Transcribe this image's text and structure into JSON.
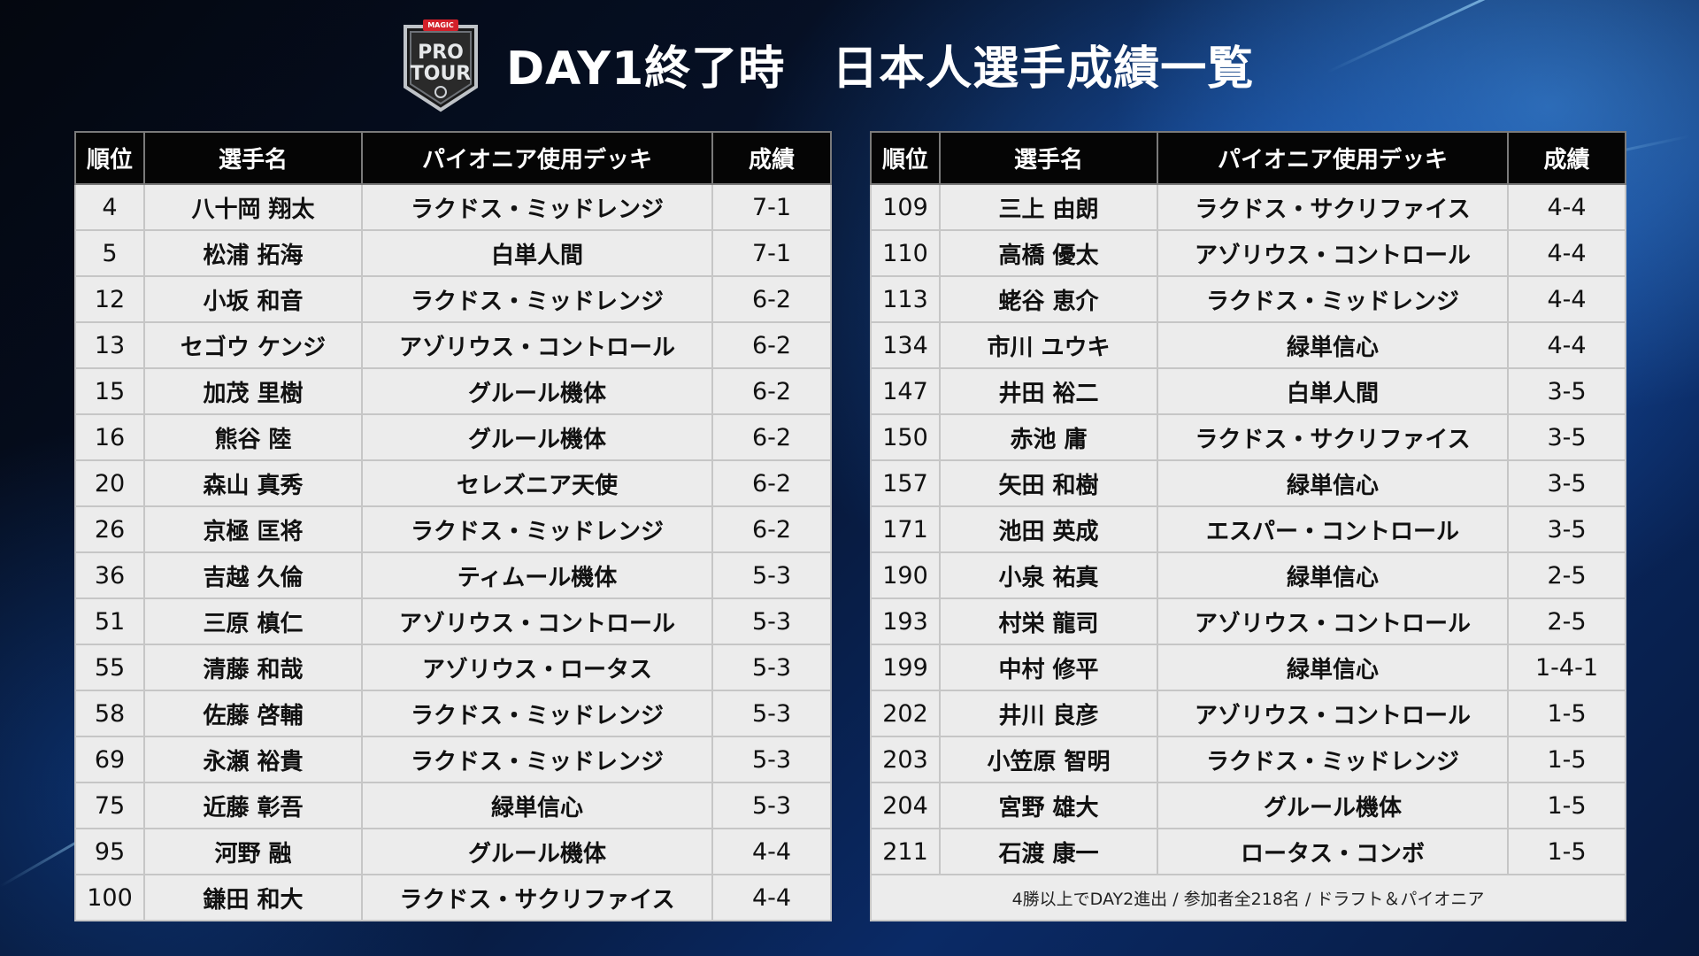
{
  "header": {
    "logo": {
      "brand_text": "MAGIC",
      "line1": "PRO",
      "line2": "TOUR"
    },
    "title": "DAY1終了時　日本人選手成績一覧"
  },
  "columns": [
    "順位",
    "選手名",
    "パイオニア使用デッキ",
    "成績"
  ],
  "left_rows": [
    {
      "rank": "4",
      "name": "八十岡 翔太",
      "deck": "ラクドス・ミッドレンジ",
      "record": "7-1"
    },
    {
      "rank": "5",
      "name": "松浦 拓海",
      "deck": "白単人間",
      "record": "7-1"
    },
    {
      "rank": "12",
      "name": "小坂 和音",
      "deck": "ラクドス・ミッドレンジ",
      "record": "6-2"
    },
    {
      "rank": "13",
      "name": "セゴウ ケンジ",
      "deck": "アゾリウス・コントロール",
      "record": "6-2"
    },
    {
      "rank": "15",
      "name": "加茂 里樹",
      "deck": "グルール機体",
      "record": "6-2"
    },
    {
      "rank": "16",
      "name": "熊谷 陸",
      "deck": "グルール機体",
      "record": "6-2"
    },
    {
      "rank": "20",
      "name": "森山 真秀",
      "deck": "セレズニア天使",
      "record": "6-2"
    },
    {
      "rank": "26",
      "name": "京極 匡将",
      "deck": "ラクドス・ミッドレンジ",
      "record": "6-2"
    },
    {
      "rank": "36",
      "name": "吉越 久倫",
      "deck": "ティムール機体",
      "record": "5-3"
    },
    {
      "rank": "51",
      "name": "三原 槙仁",
      "deck": "アゾリウス・コントロール",
      "record": "5-3"
    },
    {
      "rank": "55",
      "name": "清藤 和哉",
      "deck": "アゾリウス・ロータス",
      "record": "5-3"
    },
    {
      "rank": "58",
      "name": "佐藤 啓輔",
      "deck": "ラクドス・ミッドレンジ",
      "record": "5-3"
    },
    {
      "rank": "69",
      "name": "永瀬 裕貴",
      "deck": "ラクドス・ミッドレンジ",
      "record": "5-3"
    },
    {
      "rank": "75",
      "name": "近藤 彰吾",
      "deck": "緑単信心",
      "record": "5-3"
    },
    {
      "rank": "95",
      "name": "河野 融",
      "deck": "グルール機体",
      "record": "4-4"
    },
    {
      "rank": "100",
      "name": "鎌田 和大",
      "deck": "ラクドス・サクリファイス",
      "record": "4-4"
    }
  ],
  "right_rows": [
    {
      "rank": "109",
      "name": "三上 由朗",
      "deck": "ラクドス・サクリファイス",
      "record": "4-4"
    },
    {
      "rank": "110",
      "name": "高橋 優太",
      "deck": "アゾリウス・コントロール",
      "record": "4-4"
    },
    {
      "rank": "113",
      "name": "蛯谷 恵介",
      "deck": "ラクドス・ミッドレンジ",
      "record": "4-4"
    },
    {
      "rank": "134",
      "name": "市川 ユウキ",
      "deck": "緑単信心",
      "record": "4-4"
    },
    {
      "rank": "147",
      "name": "井田 裕二",
      "deck": "白単人間",
      "record": "3-5"
    },
    {
      "rank": "150",
      "name": "赤池 庸",
      "deck": "ラクドス・サクリファイス",
      "record": "3-5"
    },
    {
      "rank": "157",
      "name": "矢田 和樹",
      "deck": "緑単信心",
      "record": "3-5"
    },
    {
      "rank": "171",
      "name": "池田 英成",
      "deck": "エスパー・コントロール",
      "record": "3-5"
    },
    {
      "rank": "190",
      "name": "小泉 祐真",
      "deck": "緑単信心",
      "record": "2-5"
    },
    {
      "rank": "193",
      "name": "村栄 龍司",
      "deck": "アゾリウス・コントロール",
      "record": "2-5"
    },
    {
      "rank": "199",
      "name": "中村 修平",
      "deck": "緑単信心",
      "record": "1-4-1"
    },
    {
      "rank": "202",
      "name": "井川 良彦",
      "deck": "アゾリウス・コントロール",
      "record": "1-5"
    },
    {
      "rank": "203",
      "name": "小笠原 智明",
      "deck": "ラクドス・ミッドレンジ",
      "record": "1-5"
    },
    {
      "rank": "204",
      "name": "宮野 雄大",
      "deck": "グルール機体",
      "record": "1-5"
    },
    {
      "rank": "211",
      "name": "石渡 康一",
      "deck": "ロータス・コンボ",
      "record": "1-5"
    }
  ],
  "footnote": "4勝以上でDAY2進出 / 参加者全218名 / ドラフト＆パイオニア",
  "colors": {
    "header_bg": "#050505",
    "row_bg": "#ececec",
    "logo_red": "#d3202a"
  }
}
